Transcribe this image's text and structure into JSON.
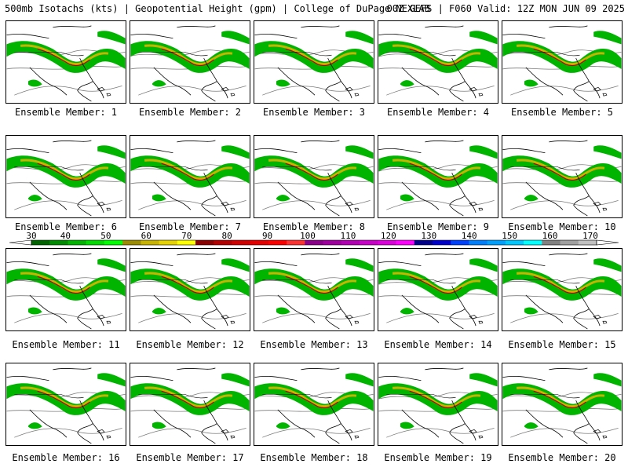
{
  "header": {
    "product": "500mb Isotachs (kts) | Geopotential Height (gpm) | College of DuPage NEXLAB",
    "run": "00Z GEFS | F060 Valid: 12Z MON JUN 09 2025"
  },
  "panels": [
    {
      "caption": "Ensemble Member: 1"
    },
    {
      "caption": "Ensemble Member: 2"
    },
    {
      "caption": "Ensemble Member: 3"
    },
    {
      "caption": "Ensemble Member: 4"
    },
    {
      "caption": "Ensemble Member: 5"
    },
    {
      "caption": "Ensemble Member: 6"
    },
    {
      "caption": "Ensemble Member: 7"
    },
    {
      "caption": "Ensemble Member: 8"
    },
    {
      "caption": "Ensemble Member: 9"
    },
    {
      "caption": "Ensemble Member: 10"
    },
    {
      "caption": "Ensemble Member: 11"
    },
    {
      "caption": "Ensemble Member: 12"
    },
    {
      "caption": "Ensemble Member: 13"
    },
    {
      "caption": "Ensemble Member: 14"
    },
    {
      "caption": "Ensemble Member: 15"
    },
    {
      "caption": "Ensemble Member: 16"
    },
    {
      "caption": "Ensemble Member: 17"
    },
    {
      "caption": "Ensemble Member: 18"
    },
    {
      "caption": "Ensemble Member: 19"
    },
    {
      "caption": "Ensemble Member: 20"
    }
  ],
  "colorbar": {
    "labels": [
      "30",
      "40",
      "50",
      "60",
      "70",
      "80",
      "90",
      "100",
      "110",
      "120",
      "130",
      "140",
      "150",
      "160",
      "170"
    ],
    "colors": [
      "#006400",
      "#008c00",
      "#00b400",
      "#00dc00",
      "#00ff00",
      "#9b8b00",
      "#c8b400",
      "#e6d200",
      "#ffff00",
      "#8b0000",
      "#b40000",
      "#d20000",
      "#e60000",
      "#ff0000",
      "#ff3232",
      "#8b008b",
      "#a000a0",
      "#b400b4",
      "#c800c8",
      "#dc00dc",
      "#ff00ff",
      "#00008b",
      "#0000cd",
      "#0040ff",
      "#0080ff",
      "#00a0ff",
      "#00c8ff",
      "#00ffff",
      "#808080",
      "#a0a0a0",
      "#c0c0c0"
    ]
  }
}
